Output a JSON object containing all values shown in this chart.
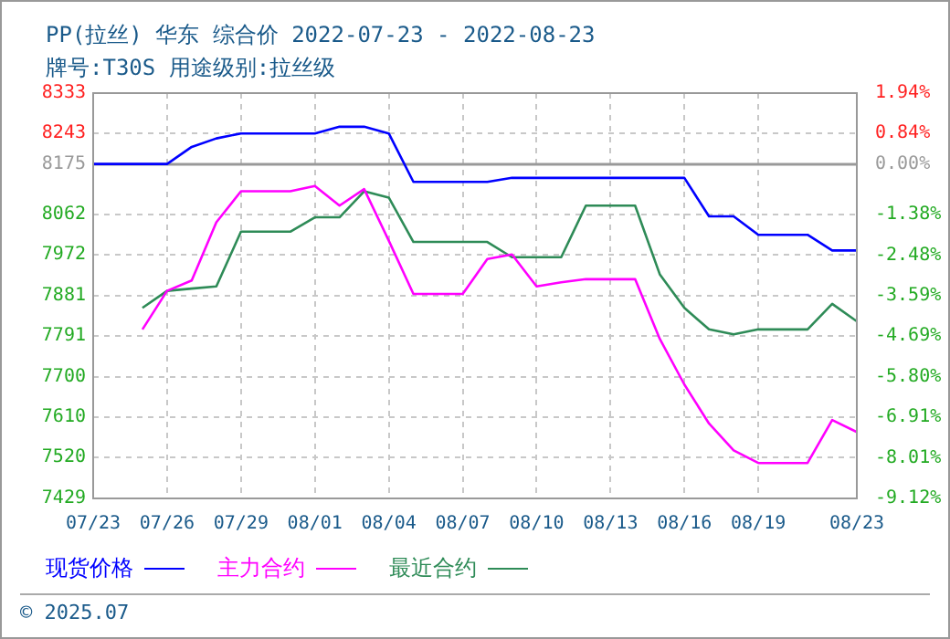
{
  "chart_data": {
    "type": "line",
    "title": "PP(拉丝) 华东 综合价 2022-07-23 - 2022-08-23",
    "subtitle": "牌号:T30S 用途级别:拉丝级",
    "x": [
      "2022-07-23",
      "2022-07-24",
      "2022-07-25",
      "2022-07-26",
      "2022-07-27",
      "2022-07-28",
      "2022-07-29",
      "2022-07-30",
      "2022-07-31",
      "2022-08-01",
      "2022-08-02",
      "2022-08-03",
      "2022-08-04",
      "2022-08-05",
      "2022-08-06",
      "2022-08-07",
      "2022-08-08",
      "2022-08-09",
      "2022-08-10",
      "2022-08-11",
      "2022-08-12",
      "2022-08-13",
      "2022-08-14",
      "2022-08-15",
      "2022-08-16",
      "2022-08-17",
      "2022-08-18",
      "2022-08-19",
      "2022-08-20",
      "2022-08-21",
      "2022-08-22",
      "2022-08-23"
    ],
    "series": [
      {
        "name": "现货价格",
        "color": "#0000ff",
        "values": [
          8175,
          8175,
          8175,
          8175,
          8213,
          8232,
          8243,
          8243,
          8243,
          8243,
          8258,
          8258,
          8243,
          8135,
          8135,
          8135,
          8135,
          8144,
          8144,
          8144,
          8144,
          8144,
          8144,
          8144,
          8144,
          8058,
          8058,
          8017,
          8017,
          8017,
          7982,
          7982
        ]
      },
      {
        "name": "主力合约",
        "color": "#ff00ff",
        "values": [
          null,
          null,
          7806,
          7892,
          7915,
          8045,
          8114,
          8114,
          8114,
          8126,
          8082,
          8119,
          8004,
          7885,
          7885,
          7885,
          7963,
          7973,
          7902,
          7911,
          7918,
          7918,
          7918,
          7785,
          7683,
          7596,
          7536,
          7508,
          7508,
          7508,
          7604,
          7577
        ]
      },
      {
        "name": "最近合约",
        "color": "#2e8b57",
        "values": [
          null,
          null,
          7854,
          7892,
          7897,
          7902,
          8024,
          8024,
          8024,
          8056,
          8056,
          8114,
          8100,
          8001,
          8001,
          8001,
          8001,
          7967,
          7967,
          7967,
          8082,
          8082,
          8082,
          7929,
          7854,
          7806,
          7795,
          7806,
          7806,
          7806,
          7863,
          7824
        ]
      }
    ],
    "xlim": [
      "2022-07-23",
      "2022-08-23"
    ],
    "xticks": [
      {
        "value": "2022-07-23",
        "label": "07/23"
      },
      {
        "value": "2022-07-26",
        "label": "07/26"
      },
      {
        "value": "2022-07-29",
        "label": "07/29"
      },
      {
        "value": "2022-08-01",
        "label": "08/01"
      },
      {
        "value": "2022-08-04",
        "label": "08/04"
      },
      {
        "value": "2022-08-07",
        "label": "08/07"
      },
      {
        "value": "2022-08-10",
        "label": "08/10"
      },
      {
        "value": "2022-08-13",
        "label": "08/13"
      },
      {
        "value": "2022-08-16",
        "label": "08/16"
      },
      {
        "value": "2022-08-19",
        "label": "08/19"
      },
      {
        "value": "2022-08-23",
        "label": "08/23"
      }
    ],
    "ylim": [
      7429,
      8333
    ],
    "yticks": [
      7429,
      7520,
      7610,
      7700,
      7791,
      7881,
      7972,
      8062,
      8175,
      8243,
      8333
    ],
    "y2lim": [
      -9.12,
      1.94
    ],
    "y2ticks": [
      {
        "value": -9.12,
        "label": "-9.12%"
      },
      {
        "value": -8.01,
        "label": "-8.01%"
      },
      {
        "value": -6.91,
        "label": "-6.91%"
      },
      {
        "value": -5.8,
        "label": "-5.80%"
      },
      {
        "value": -4.69,
        "label": "-4.69%"
      },
      {
        "value": -3.59,
        "label": "-3.59%"
      },
      {
        "value": -2.48,
        "label": "-2.48%"
      },
      {
        "value": -1.38,
        "label": "-1.38%"
      },
      {
        "value": 0,
        "label": "0.00%"
      },
      {
        "value": 0.84,
        "label": "0.84%"
      },
      {
        "value": 1.94,
        "label": "1.94%"
      }
    ],
    "ref_lines": [
      {
        "axis": "y2",
        "value": 0,
        "color": "#999999"
      }
    ],
    "grid": true,
    "legend": "bottom",
    "marker": "none",
    "line_style": "solid",
    "annotations": [
      "© 2025.07"
    ]
  }
}
